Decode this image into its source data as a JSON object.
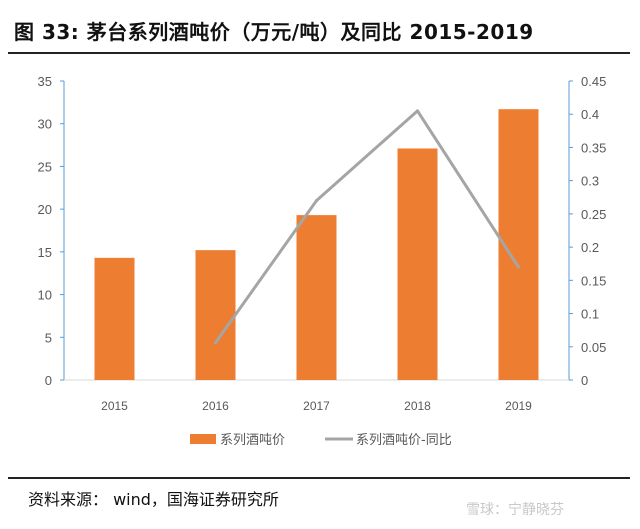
{
  "title": "图 33: 茅台系列酒吨价（万元/吨）及同比 2015-2019",
  "source": "资料来源：  wind，国海证券研究所",
  "watermark": "雪球：宁静晓芬",
  "chart_data": {
    "type": "bar",
    "categories": [
      "2015",
      "2016",
      "2017",
      "2018",
      "2019"
    ],
    "series": [
      {
        "name": "系列酒吨价",
        "type": "bar",
        "axis": "left",
        "color": "#ED7D31",
        "values": [
          14.3,
          15.2,
          19.3,
          27.1,
          31.7
        ]
      },
      {
        "name": "系列酒吨价-同比",
        "type": "line",
        "axis": "right",
        "color": "#A5A5A5",
        "values": [
          null,
          0.056,
          0.27,
          0.405,
          0.17
        ]
      }
    ],
    "y_left": {
      "range": [
        0,
        35
      ],
      "ticks": [
        "0",
        "5",
        "10",
        "15",
        "20",
        "25",
        "30",
        "35"
      ]
    },
    "y_right": {
      "range": [
        0,
        0.45
      ],
      "ticks": [
        "0",
        "0.05",
        "0.1",
        "0.15",
        "0.2",
        "0.25",
        "0.3",
        "0.35",
        "0.4",
        "0.45"
      ]
    },
    "legend": "bottom",
    "grid": false
  }
}
